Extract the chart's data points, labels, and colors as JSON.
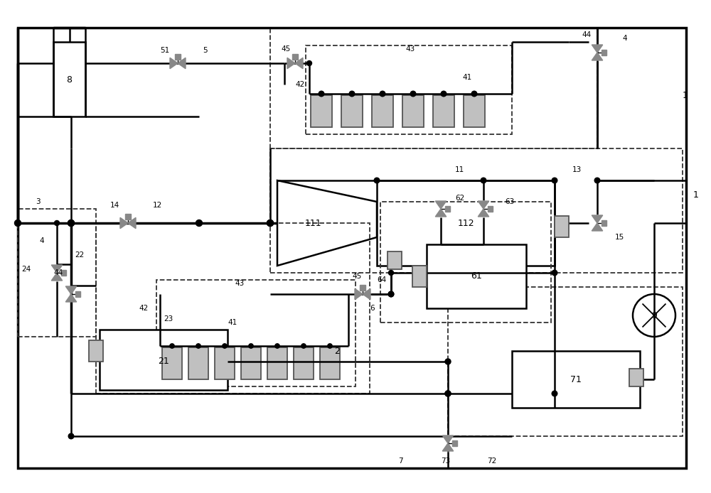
{
  "fig_width": 10.0,
  "fig_height": 6.94,
  "bg_color": "#ffffff",
  "lc": "#000000",
  "gc": "#888888",
  "lgc": "#c0c0c0",
  "lw": 1.8,
  "lwt": 2.5,
  "lwd": 1.3,
  "fsl": 9,
  "fsn": 7.5
}
